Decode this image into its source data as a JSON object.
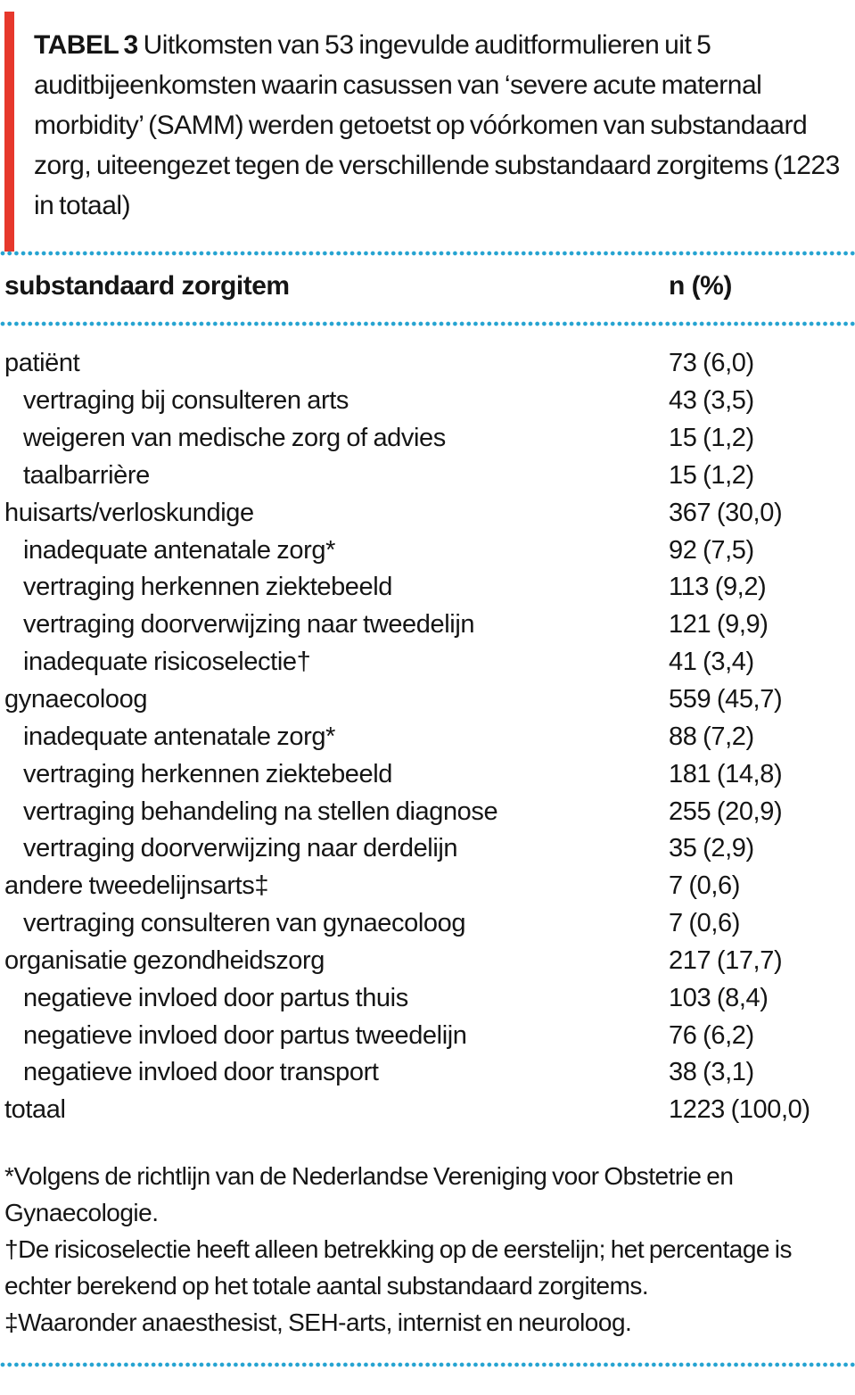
{
  "caption": {
    "label": "TABEL 3",
    "text": "Uitkomsten van 53 ingevulde auditformulieren uit 5 auditbijeenkomsten waarin casussen van ‘severe acute maternal morbidity’ (SAMM) werden getoetst op vóórkomen van substandaard zorg, uiteengezet tegen de verschillende substandaard zorgitems (1223 in totaal)"
  },
  "columns": {
    "item": "substandaard zorgitem",
    "value": "n (%)"
  },
  "rows": [
    {
      "label": "patiënt",
      "value": "73 (6,0)",
      "level": 0
    },
    {
      "label": "vertraging bij consulteren arts",
      "value": "43 (3,5)",
      "level": 1
    },
    {
      "label": "weigeren van medische zorg of advies",
      "value": "15 (1,2)",
      "level": 1
    },
    {
      "label": "taalbarrière",
      "value": "15 (1,2)",
      "level": 1
    },
    {
      "label": "huisarts/verloskundige",
      "value": "367 (30,0)",
      "level": 0
    },
    {
      "label": "inadequate antenatale zorg*",
      "value": "92 (7,5)",
      "level": 1
    },
    {
      "label": "vertraging herkennen ziektebeeld",
      "value": "113 (9,2)",
      "level": 1
    },
    {
      "label": "vertraging doorverwijzing naar tweedelijn",
      "value": "121 (9,9)",
      "level": 1
    },
    {
      "label": "inadequate risicoselectie†",
      "value": "41 (3,4)",
      "level": 1
    },
    {
      "label": "gynaecoloog",
      "value": "559 (45,7)",
      "level": 0
    },
    {
      "label": "inadequate antenatale zorg*",
      "value": "88 (7,2)",
      "level": 1
    },
    {
      "label": "vertraging herkennen ziektebeeld",
      "value": "181 (14,8)",
      "level": 1
    },
    {
      "label": "vertraging behandeling na stellen diagnose",
      "value": "255 (20,9)",
      "level": 1
    },
    {
      "label": "vertraging doorverwijzing naar derdelijn",
      "value": "35 (2,9)",
      "level": 1
    },
    {
      "label": "andere tweedelijnsarts‡",
      "value": "7 (0,6)",
      "level": 0
    },
    {
      "label": "vertraging consulteren van gynaecoloog",
      "value": "7 (0,6)",
      "level": 1
    },
    {
      "label": "organisatie gezondheidszorg",
      "value": "217 (17,7)",
      "level": 0
    },
    {
      "label": "negatieve invloed door partus thuis",
      "value": "103 (8,4)",
      "level": 1
    },
    {
      "label": "negatieve invloed door partus tweedelijn",
      "value": "76 (6,2)",
      "level": 1
    },
    {
      "label": "negatieve invloed door transport",
      "value": "38 (3,1)",
      "level": 1
    },
    {
      "label": "totaal",
      "value": "1223 (100,0)",
      "level": 0
    }
  ],
  "footnotes": [
    "*Volgens de richtlijn van de Nederlandse Vereniging voor Obstetrie en Gynaecologie.",
    "†De risicoselectie heeft alleen betrekking op de eerstelijn; het percentage is echter berekend op het totale aantal substandaard zorgitems.",
    "‡Waaronder anaesthesist, SEH-arts, internist en neuroloog."
  ],
  "colors": {
    "accent_red": "#E6382C",
    "dot_teal": "#25A3D1",
    "text": "#151515"
  }
}
